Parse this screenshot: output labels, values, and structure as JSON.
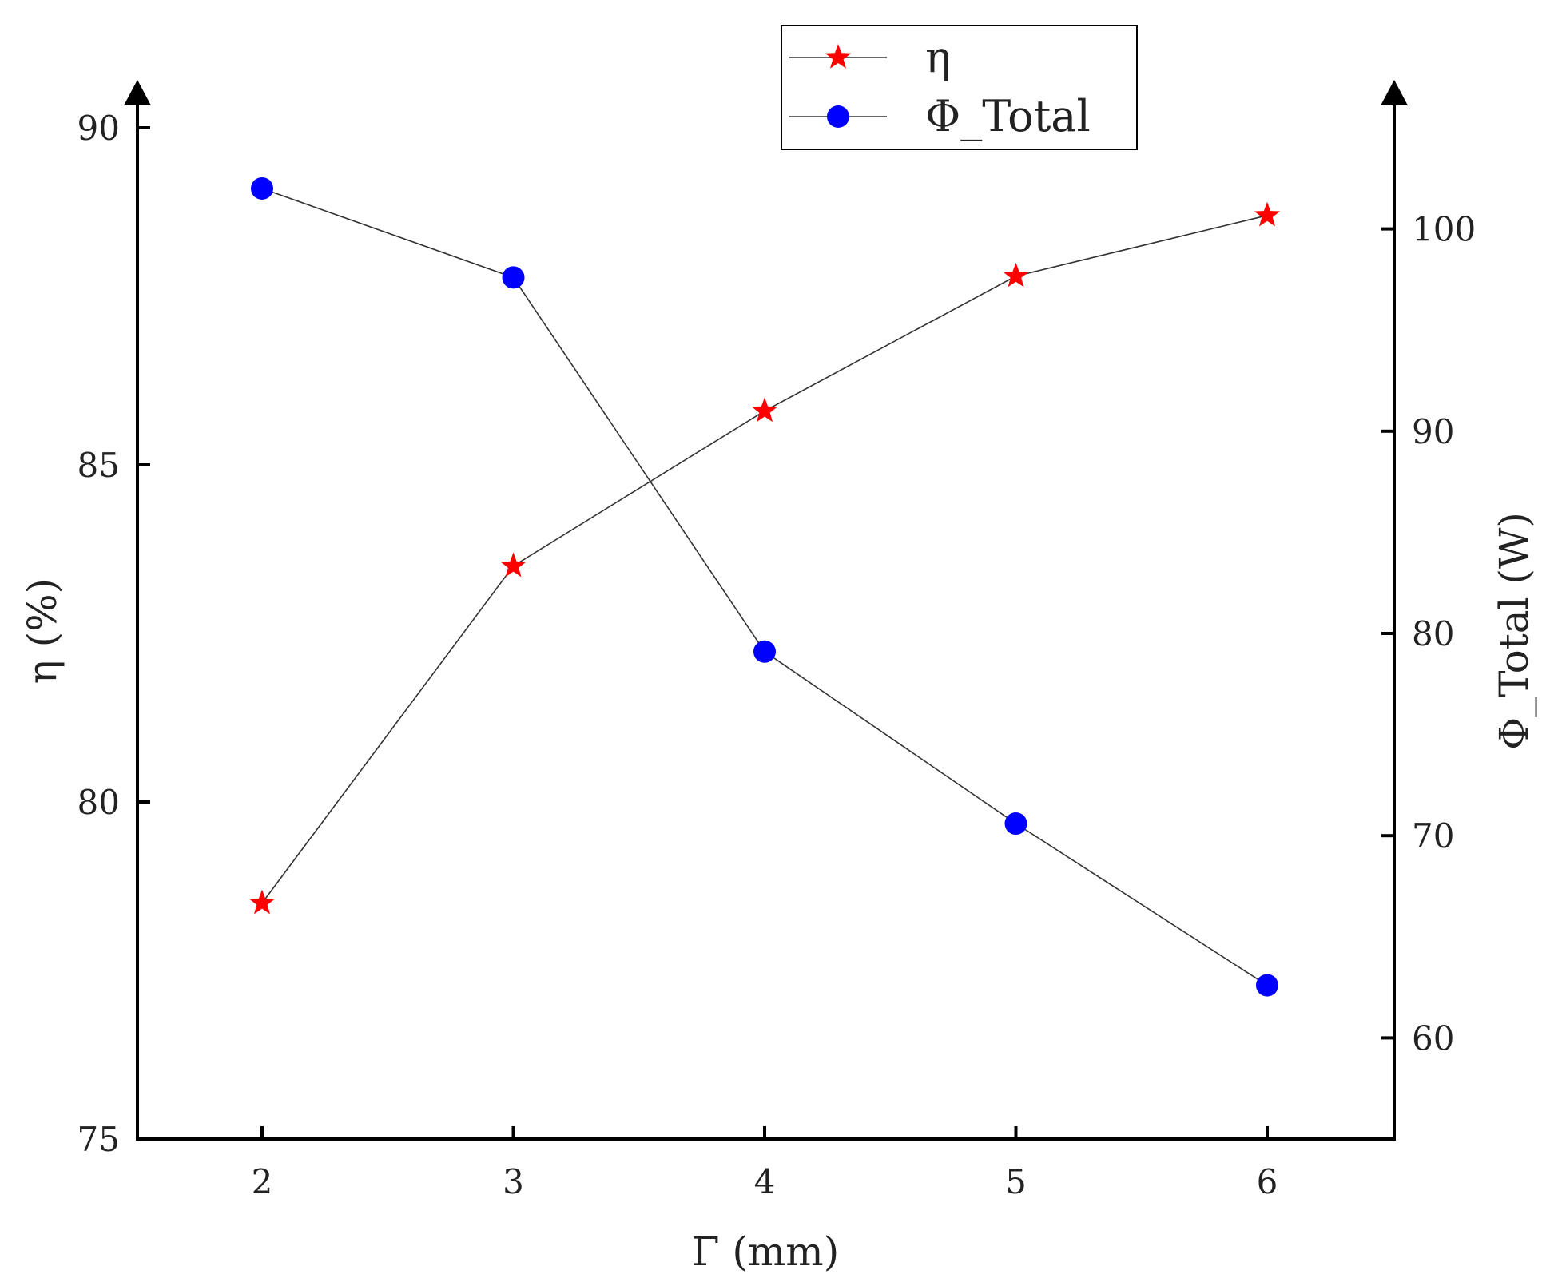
{
  "chart_data": {
    "type": "line",
    "xlabel": "Γ (mm)",
    "x": [
      2,
      3,
      4,
      5,
      6
    ],
    "xticks": [
      2,
      3,
      4,
      5,
      6
    ],
    "y_left": {
      "label": "η (%)",
      "lim": [
        75,
        90
      ],
      "ticks": [
        75,
        80,
        85,
        90
      ]
    },
    "y_right": {
      "label": "Φ_Total (W)",
      "lim": [
        55,
        105
      ],
      "ticks": [
        60,
        70,
        80,
        90,
        100
      ]
    },
    "series": [
      {
        "name": "η",
        "axis": "left",
        "marker": "star",
        "color": "#ff0000",
        "values": [
          78.5,
          83.5,
          85.8,
          87.8,
          88.7
        ]
      },
      {
        "name": "Φ_Total",
        "axis": "right",
        "marker": "circle",
        "color": "#0000ff",
        "values": [
          102,
          97.6,
          79.1,
          70.6,
          62.6
        ]
      }
    ],
    "legend_position": "top-center",
    "grid": false
  }
}
